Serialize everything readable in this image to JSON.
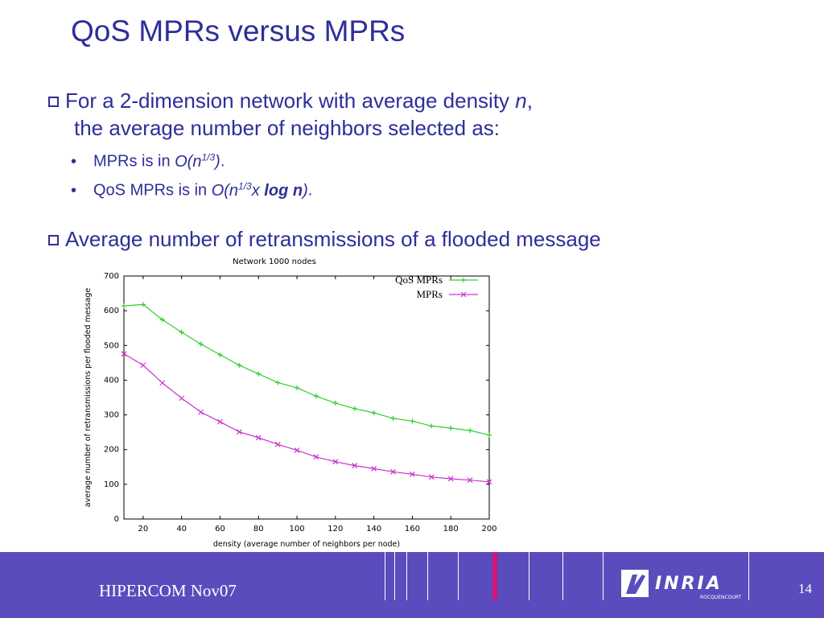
{
  "slide": {
    "title": "QoS MPRs versus MPRs",
    "bullet1_line1": "For a 2-dimension network with average density ",
    "bullet1_n": "n",
    "bullet1_comma": ",",
    "bullet1_line2": "the average number of neighbors selected as:",
    "sub1_prefix": "MPRs is in ",
    "sub1_formula": "O(n",
    "sub1_sup": "1/3",
    "sub1_close": ")",
    "sub1_end": ".",
    "sub2_prefix": "QoS MPRs is in ",
    "sub2_formula": "O(n",
    "sub2_sup": "1/3",
    "sub2_x": "x ",
    "sub2_log": "log n",
    "sub2_close": ")",
    "sub2_end": ".",
    "bullet2": "Average number of retransmissions of a flooded message"
  },
  "footer": {
    "label": "HIPERCOM  Nov07",
    "page": "14",
    "logo_text": "INRIA",
    "logo_sub": "ROCQUENCOURT"
  },
  "colors": {
    "title": "#2e2e9a",
    "footer_bg": "#5a4cbd",
    "qos_series": "#33cc33",
    "mpr_series": "#cc33cc",
    "accent_bar": "#d4147a"
  },
  "chart_data": {
    "type": "line",
    "title": "Network 1000 nodes",
    "xlabel": "density (average number of neighbors per node)",
    "ylabel": "average number of retransmissions per flooded message",
    "xlim": [
      10,
      200
    ],
    "ylim": [
      0,
      700
    ],
    "xticks": [
      20,
      40,
      60,
      80,
      100,
      120,
      140,
      160,
      180,
      200
    ],
    "yticks": [
      0,
      100,
      200,
      300,
      400,
      500,
      600,
      700
    ],
    "legend_position": "top-right",
    "x": [
      10,
      20,
      30,
      40,
      50,
      60,
      70,
      80,
      90,
      100,
      110,
      120,
      130,
      140,
      150,
      160,
      170,
      180,
      190,
      200
    ],
    "series": [
      {
        "name": "QoS MPRs",
        "color": "#33cc33",
        "marker": "+",
        "values": [
          614,
          618,
          574,
          538,
          504,
          473,
          443,
          418,
          393,
          378,
          354,
          334,
          318,
          306,
          290,
          282,
          268,
          262,
          255,
          242
        ]
      },
      {
        "name": "MPRs",
        "color": "#cc33cc",
        "marker": "x",
        "values": [
          476,
          443,
          392,
          348,
          308,
          280,
          251,
          234,
          215,
          198,
          179,
          165,
          154,
          145,
          136,
          129,
          121,
          116,
          112,
          107
        ]
      }
    ]
  }
}
